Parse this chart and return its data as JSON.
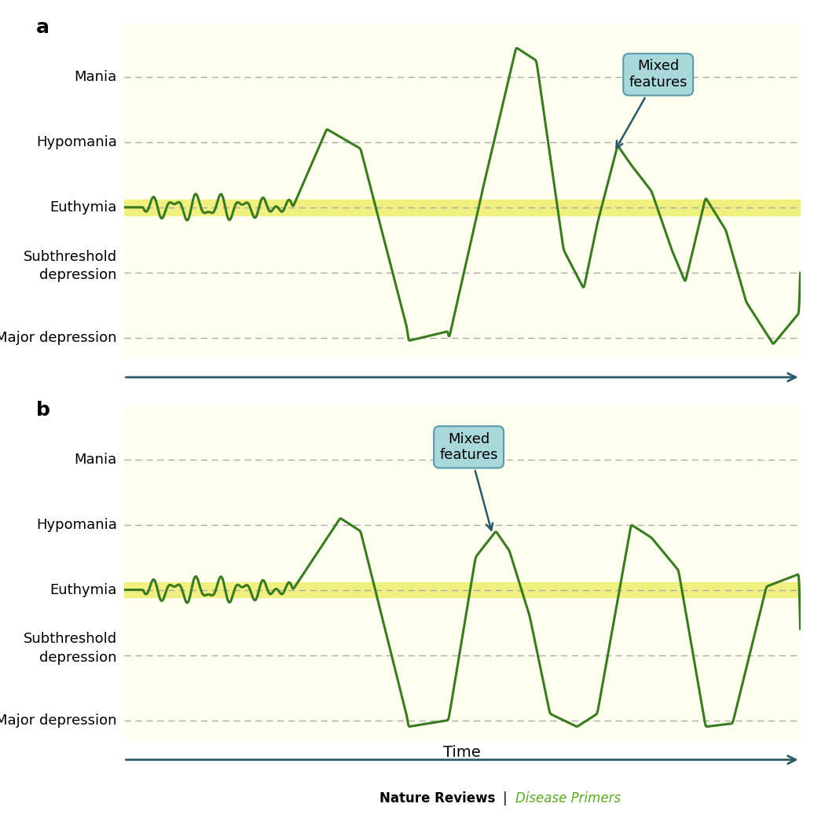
{
  "bg_color": "#fffff0",
  "yellow_band_color": "#f0f080",
  "line_color": "#3a7a20",
  "dashed_line_color": "#aaaaaa",
  "arrow_color": "#2a5a6a",
  "box_fill_color": "#a8d8da",
  "box_edge_color": "#5a9aaa",
  "y_levels": {
    "Mania": 4,
    "Hypomania": 3,
    "Euthymia": 2,
    "Subthreshold depression": 1,
    "Major depression": 0
  },
  "y_min": -0.3,
  "y_max": 4.8,
  "panel_a_label": "a",
  "panel_b_label": "b",
  "footer_text_bold": "Nature Reviews",
  "footer_text_color": "Disease Primers",
  "time_label": "Time"
}
